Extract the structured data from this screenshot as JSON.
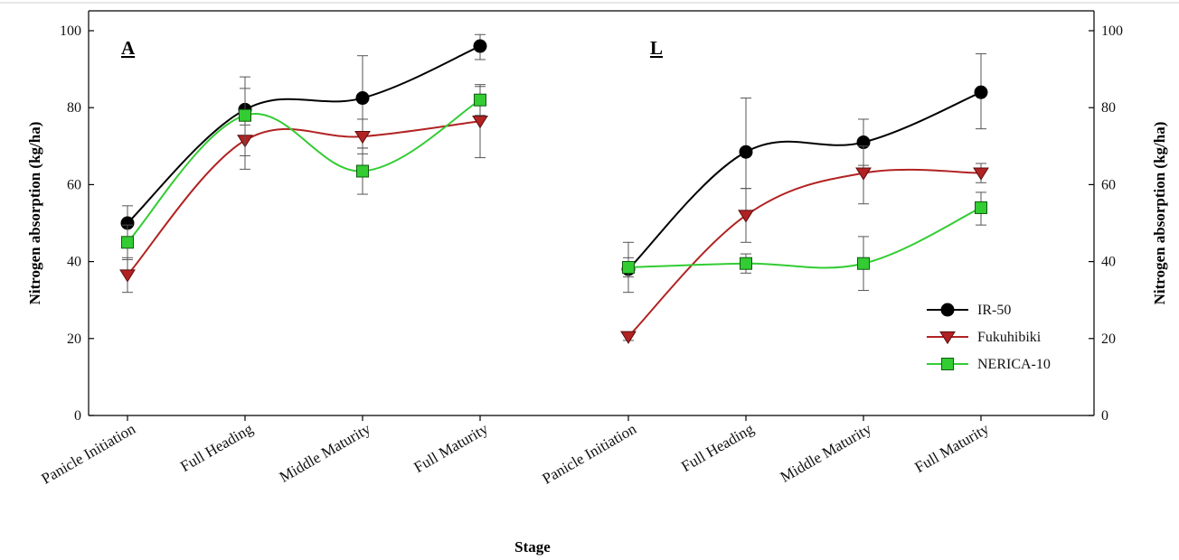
{
  "chart_data": {
    "type": "line",
    "xlabel": "Stage",
    "ylabel_left": "Nitrogen absorption (kg/ha)",
    "ylabel_right": "Nitrogen absorption (kg/ha)",
    "ylim": [
      0,
      100
    ],
    "yticks": [
      0,
      20,
      40,
      60,
      80,
      100
    ],
    "categories": [
      "Panicle Initiation",
      "Full Heading",
      "Middle Maturity",
      "Full Maturity"
    ],
    "legend": {
      "placement": "right, inside panel L",
      "entries": [
        "IR-50",
        "Fukuhibiki",
        "NERICA-10"
      ]
    },
    "panels": [
      {
        "label": "A",
        "series": [
          {
            "name": "IR-50",
            "color": "#000000",
            "marker": "circle",
            "values": [
              50,
              79.5,
              82.5,
              96
            ],
            "err_low": [
              45.5,
              72,
              69.5,
              92.5
            ],
            "err_high": [
              54.5,
              88,
              93.5,
              99
            ]
          },
          {
            "name": "Fukuhibiki",
            "color": "#b22222",
            "marker": "triangle-down",
            "values": [
              36.5,
              71.5,
              72.5,
              76.5
            ],
            "err_low": [
              32,
              67.5,
              68,
              67
            ],
            "err_high": [
              41,
              75.5,
              77,
              86
            ]
          },
          {
            "name": "NERICA-10",
            "color": "#33cc33",
            "marker": "square",
            "values": [
              45,
              78,
              63.5,
              82
            ],
            "err_low": [
              40.5,
              64,
              57.5,
              78
            ],
            "err_high": [
              49.5,
              85,
              69.5,
              85.5
            ]
          }
        ]
      },
      {
        "label": "L",
        "series": [
          {
            "name": "IR-50",
            "color": "#000000",
            "marker": "circle",
            "values": [
              38,
              68.5,
              71,
              84
            ],
            "err_low": [
              32,
              59,
              65,
              74.5
            ],
            "err_high": [
              45,
              82.5,
              77,
              94
            ]
          },
          {
            "name": "Fukuhibiki",
            "color": "#b22222",
            "marker": "triangle-down",
            "values": [
              20.5,
              52,
              63,
              63
            ],
            "err_low": [
              19.5,
              45,
              55,
              60.5
            ],
            "err_high": [
              21.5,
              59,
              70,
              65.5
            ]
          },
          {
            "name": "NERICA-10",
            "color": "#33cc33",
            "marker": "square",
            "values": [
              38.5,
              39.5,
              39.5,
              54
            ],
            "err_low": [
              36,
              37,
              32.5,
              49.5
            ],
            "err_high": [
              41,
              42,
              46.5,
              58
            ]
          }
        ]
      }
    ]
  }
}
